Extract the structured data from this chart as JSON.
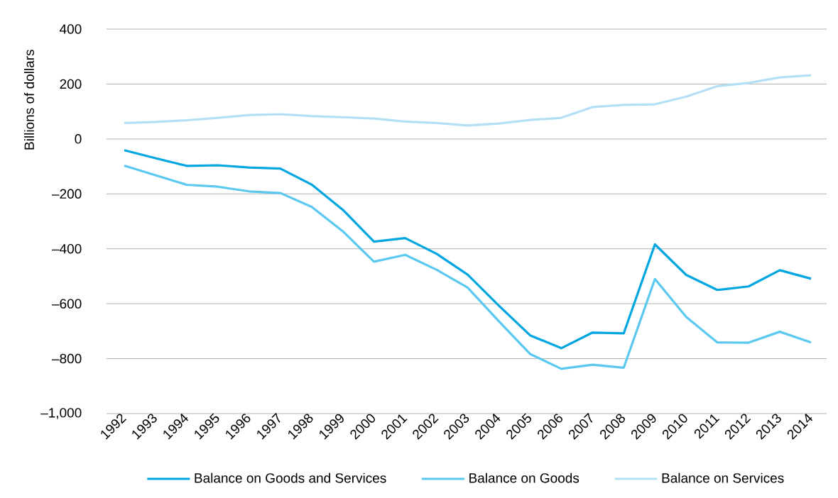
{
  "chart_data": {
    "type": "line",
    "ylabel": "Billions of dollars",
    "categories": [
      "1992",
      "1993",
      "1994",
      "1995",
      "1996",
      "1997",
      "1998",
      "1999",
      "2000",
      "2001",
      "2002",
      "2003",
      "2004",
      "2005",
      "2006",
      "2007",
      "2008",
      "2009",
      "2010",
      "2011",
      "2012",
      "2013",
      "2014"
    ],
    "series": [
      {
        "name": "Balance on Goods and Services",
        "color": "#00a6e0",
        "values": [
          -41,
          -70,
          -98,
          -96,
          -104,
          -108,
          -166,
          -258,
          -374,
          -361,
          -418,
          -494,
          -607,
          -715,
          -762,
          -705,
          -708,
          -384,
          -495,
          -550,
          -537,
          -478,
          -509
        ]
      },
      {
        "name": "Balance on Goods",
        "color": "#5bc8f0",
        "values": [
          -97,
          -132,
          -167,
          -174,
          -191,
          -197,
          -247,
          -336,
          -447,
          -422,
          -476,
          -541,
          -664,
          -783,
          -837,
          -822,
          -833,
          -510,
          -648,
          -741,
          -742,
          -702,
          -741
        ]
      },
      {
        "name": "Balance on Services",
        "color": "#b3e0f5",
        "values": [
          58,
          62,
          68,
          77,
          87,
          90,
          83,
          79,
          74,
          63,
          58,
          49,
          56,
          69,
          77,
          116,
          124,
          126,
          154,
          192,
          204,
          224,
          232
        ]
      }
    ],
    "ylim": [
      -1000,
      400
    ],
    "yticks": [
      {
        "value": -1000,
        "label": "–1,000"
      },
      {
        "value": -800,
        "label": "–800"
      },
      {
        "value": -600,
        "label": "–600"
      },
      {
        "value": -400,
        "label": "–400"
      },
      {
        "value": -200,
        "label": "–200"
      },
      0,
      200,
      400
    ],
    "grid": "y",
    "legend": "bottom",
    "marker": "none",
    "line_style": "solid"
  }
}
